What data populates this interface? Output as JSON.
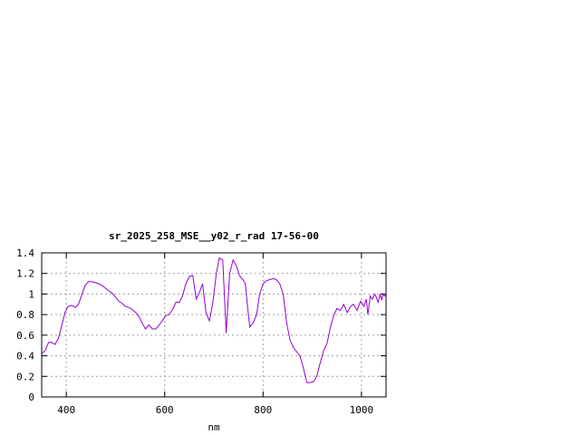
{
  "chart_data": {
    "type": "line",
    "title": "sr_2025_258_MSE__y02_r_rad 17-56-00",
    "xlabel": "nm",
    "ylabel": "",
    "xlim": [
      350,
      1050
    ],
    "ylim": [
      0,
      1.4
    ],
    "x_ticks": [
      400,
      600,
      800,
      1000
    ],
    "x_tick_labels": [
      "400",
      "600",
      "800",
      "1000"
    ],
    "y_ticks": [
      0,
      0.2,
      0.4,
      0.6,
      0.8,
      1,
      1.2,
      1.4
    ],
    "y_tick_labels": [
      "0",
      "0.2",
      "0.4",
      "0.6",
      "0.8",
      "1",
      "1.2",
      "1.4"
    ],
    "grid": true,
    "line_color": "#9400d3",
    "series": [
      {
        "x": [
          350,
          357,
          364,
          370,
          377,
          384,
          391,
          398,
          404,
          411,
          418,
          425,
          432,
          438,
          445,
          452,
          459,
          466,
          473,
          479,
          486,
          493,
          500,
          507,
          513,
          520,
          527,
          534,
          541,
          548,
          554,
          561,
          568,
          575,
          582,
          589,
          595,
          602,
          609,
          616,
          623,
          630,
          636,
          643,
          650,
          657,
          664,
          671,
          677,
          684,
          691,
          698,
          705,
          711,
          718,
          725,
          732,
          739,
          746,
          752,
          759,
          764,
          768,
          773,
          780,
          787,
          793,
          800,
          807,
          814,
          821,
          827,
          834,
          841,
          848,
          855,
          862,
          868,
          875,
          882,
          889,
          896,
          903,
          909,
          916,
          923,
          930,
          937,
          943,
          950,
          957,
          964,
          971,
          978,
          984,
          991,
          998,
          1005,
          1010,
          1013,
          1018,
          1022,
          1027,
          1030,
          1034,
          1038,
          1041,
          1044,
          1047,
          1050
        ],
        "y": [
          0.42,
          0.45,
          0.53,
          0.53,
          0.51,
          0.57,
          0.7,
          0.83,
          0.88,
          0.89,
          0.87,
          0.9,
          1.0,
          1.08,
          1.12,
          1.12,
          1.11,
          1.1,
          1.08,
          1.06,
          1.03,
          1.01,
          0.97,
          0.93,
          0.91,
          0.88,
          0.87,
          0.85,
          0.82,
          0.78,
          0.72,
          0.66,
          0.7,
          0.66,
          0.66,
          0.7,
          0.74,
          0.79,
          0.8,
          0.85,
          0.92,
          0.92,
          0.98,
          1.1,
          1.17,
          1.18,
          0.95,
          1.02,
          1.1,
          0.82,
          0.74,
          0.92,
          1.2,
          1.35,
          1.33,
          0.62,
          1.2,
          1.33,
          1.27,
          1.18,
          1.14,
          1.1,
          0.9,
          0.68,
          0.72,
          0.8,
          1.0,
          1.1,
          1.13,
          1.14,
          1.15,
          1.14,
          1.1,
          1.0,
          0.72,
          0.55,
          0.48,
          0.44,
          0.4,
          0.28,
          0.14,
          0.14,
          0.15,
          0.2,
          0.33,
          0.45,
          0.52,
          0.68,
          0.78,
          0.86,
          0.84,
          0.9,
          0.82,
          0.88,
          0.9,
          0.84,
          0.93,
          0.88,
          0.95,
          0.8,
          0.98,
          0.95,
          1.0,
          0.97,
          0.92,
          1.0,
          0.94,
          1.0,
          0.98,
          1.01
        ]
      }
    ]
  }
}
